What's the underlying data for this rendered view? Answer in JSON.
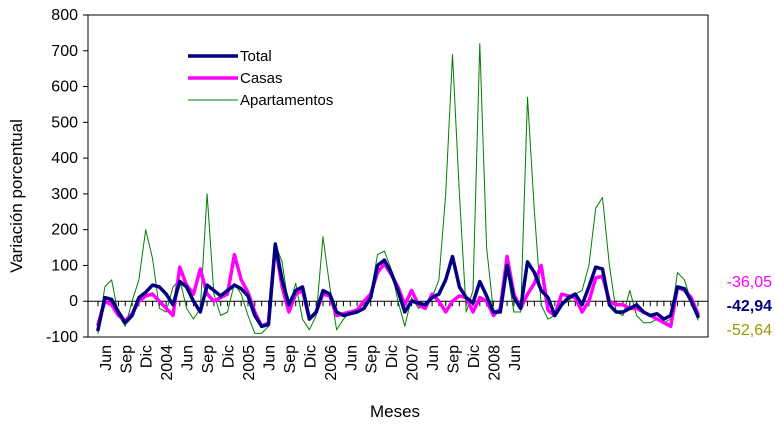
{
  "chart_data": {
    "type": "line",
    "title": "",
    "xlabel": "Meses",
    "ylabel": "Variación porcentual",
    "ylim": [
      -100,
      800
    ],
    "yticks": [
      -100,
      0,
      100,
      200,
      300,
      400,
      500,
      600,
      700,
      800
    ],
    "grid": false,
    "legend_position": "top-left",
    "x_tick_labels": [
      "Jun",
      "Sep",
      "Dic",
      "2004",
      "Jun",
      "Sep",
      "Dic",
      "2005",
      "Jun",
      "Sep",
      "Dic",
      "2006",
      "Jun",
      "Sep",
      "Dic",
      "2007",
      "Jun",
      "Sep",
      "Dic",
      "2008",
      "Jun"
    ],
    "series": [
      {
        "name": "Total",
        "color": "#000080",
        "values": [
          -80,
          10,
          5,
          -30,
          -60,
          -40,
          10,
          25,
          45,
          40,
          20,
          -10,
          55,
          40,
          0,
          -30,
          45,
          30,
          15,
          30,
          45,
          35,
          15,
          -40,
          -70,
          -65,
          160,
          60,
          -10,
          30,
          40,
          -50,
          -30,
          30,
          20,
          -30,
          -40,
          -35,
          -30,
          -20,
          10,
          100,
          115,
          80,
          30,
          -30,
          0,
          -5,
          -10,
          10,
          20,
          60,
          125,
          40,
          10,
          -5,
          55,
          15,
          -30,
          -30,
          100,
          10,
          -20,
          110,
          80,
          30,
          10,
          -40,
          -10,
          10,
          20,
          -10,
          40,
          95,
          90,
          -10,
          -30,
          -30,
          -20,
          -10,
          -30,
          -40,
          -35,
          -50,
          -40,
          40,
          35,
          0,
          -42.94
        ]
      },
      {
        "name": "Casas",
        "color": "#ff00ff",
        "values": [
          -65,
          0,
          -10,
          -40,
          -55,
          -35,
          0,
          15,
          20,
          0,
          -20,
          -40,
          95,
          45,
          20,
          90,
          20,
          0,
          10,
          20,
          130,
          60,
          25,
          -30,
          -70,
          -60,
          155,
          40,
          -30,
          20,
          30,
          -50,
          -30,
          20,
          15,
          -40,
          -35,
          -30,
          -25,
          0,
          20,
          80,
          105,
          75,
          40,
          -10,
          30,
          -10,
          -20,
          20,
          0,
          -30,
          0,
          15,
          10,
          -30,
          10,
          0,
          -40,
          -20,
          125,
          20,
          -20,
          20,
          50,
          100,
          -25,
          -40,
          20,
          15,
          10,
          -30,
          0,
          65,
          70,
          0,
          -10,
          -10,
          -20,
          -20,
          -30,
          -40,
          -50,
          -60,
          -70,
          40,
          30,
          10,
          -36.05
        ]
      },
      {
        "name": "Apartamentos",
        "color": "#008000",
        "values": [
          -90,
          40,
          60,
          -40,
          -70,
          0,
          60,
          200,
          120,
          -20,
          -30,
          40,
          60,
          -20,
          -50,
          -20,
          300,
          20,
          -40,
          -30,
          50,
          20,
          -40,
          -90,
          -90,
          -70,
          160,
          110,
          -20,
          50,
          -50,
          -80,
          -40,
          180,
          40,
          -80,
          -50,
          -30,
          -20,
          -10,
          20,
          130,
          140,
          90,
          0,
          -70,
          10,
          -20,
          -10,
          10,
          60,
          300,
          690,
          300,
          -30,
          30,
          720,
          150,
          -30,
          -20,
          90,
          -30,
          -30,
          570,
          250,
          -10,
          -50,
          -40,
          -10,
          0,
          20,
          30,
          100,
          260,
          290,
          100,
          -30,
          -40,
          30,
          -40,
          -60,
          -60,
          -50,
          -60,
          -50,
          80,
          60,
          0,
          -52.64
        ]
      }
    ],
    "end_labels": [
      {
        "text": "-36,05",
        "color": "#ff00ff",
        "bold": false
      },
      {
        "text": "-42,94",
        "color": "#000080",
        "bold": true
      },
      {
        "text": "-52,64",
        "color": "#999900",
        "bold": false
      }
    ]
  }
}
